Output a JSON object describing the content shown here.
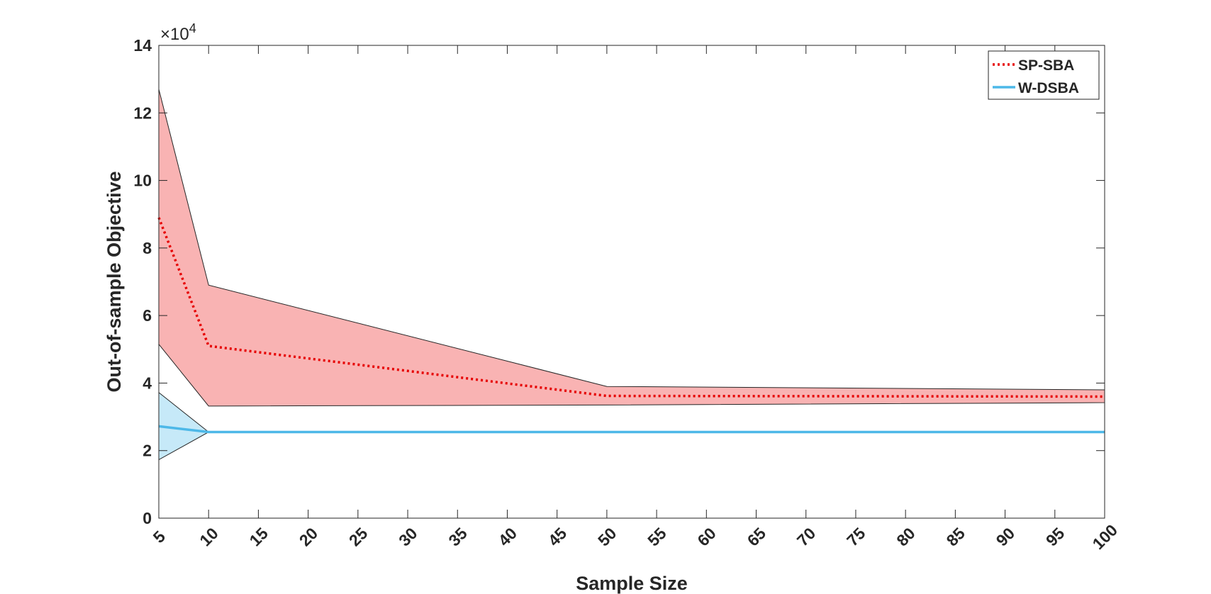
{
  "chart_data": {
    "type": "line",
    "xlabel": "Sample Size",
    "ylabel": "Out-of-sample Objective",
    "y_exponent_label": "×10",
    "y_exponent_power": "4",
    "xlim": [
      5,
      100
    ],
    "ylim": [
      0,
      14
    ],
    "x_ticks": [
      5,
      10,
      15,
      20,
      25,
      30,
      35,
      40,
      45,
      50,
      55,
      60,
      65,
      70,
      75,
      80,
      85,
      90,
      95,
      100
    ],
    "y_ticks": [
      0,
      2,
      4,
      6,
      8,
      10,
      12,
      14
    ],
    "grid": false,
    "legend_position": "top-right",
    "series": [
      {
        "name": "SP-SBA",
        "line_style": "dotted",
        "color": "#e60000",
        "band_color": "#f9b3b3",
        "x": [
          5,
          10,
          50,
          100
        ],
        "values": [
          8.9,
          5.1,
          3.62,
          3.6
        ],
        "band_upper": [
          12.7,
          6.9,
          3.9,
          3.8
        ],
        "band_lower": [
          5.15,
          3.32,
          3.35,
          3.42
        ]
      },
      {
        "name": "W-DSBA",
        "line_style": "solid",
        "color": "#4db8e8",
        "band_color": "#c6e9f8",
        "x": [
          5,
          10,
          50,
          100
        ],
        "values": [
          2.72,
          2.55,
          2.55,
          2.55
        ],
        "band_upper": [
          3.72,
          2.55,
          2.55,
          2.55
        ],
        "band_lower": [
          1.73,
          2.55,
          2.55,
          2.55
        ]
      }
    ]
  }
}
